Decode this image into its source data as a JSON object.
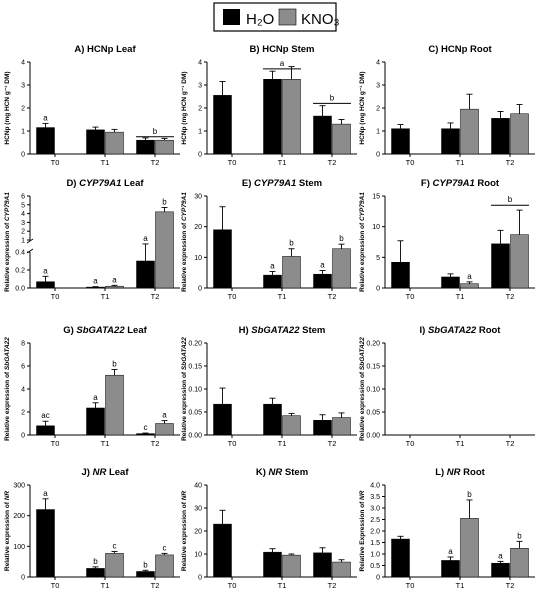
{
  "legend": {
    "items": [
      {
        "label": "H₂O",
        "color": "#000000"
      },
      {
        "label": "KNO₃",
        "color": "#8c8c8c"
      }
    ]
  },
  "colors": {
    "h2o": "#000000",
    "kno3": "#8c8c8c"
  },
  "chart_data": [
    {
      "id": "A",
      "type": "bar",
      "title_prefix": "A) ",
      "title_gene": "",
      "title_suffix": "HCNp Leaf",
      "ylabel": "HCNp  (mg HCN g⁻¹ DM)",
      "ylim": [
        0,
        4
      ],
      "yticks": [
        0,
        1,
        2,
        3,
        4
      ],
      "ytick_labels": [
        "0",
        "1",
        "2",
        "3",
        "4"
      ],
      "categories": [
        "T0",
        "T1",
        "T2"
      ],
      "series": [
        {
          "name": "H₂O",
          "values": [
            1.15,
            1.05,
            0.6
          ],
          "errors": [
            0.18,
            0.12,
            0.1
          ],
          "letters": [
            "a",
            "",
            ""
          ]
        },
        {
          "name": "KNO₃",
          "values": [
            null,
            0.95,
            0.6
          ],
          "errors": [
            null,
            0.12,
            0.08
          ],
          "letters": [
            "",
            "",
            ""
          ]
        }
      ],
      "brackets": [
        {
          "from": 2,
          "to": 2,
          "y": 0.75,
          "label": "b"
        }
      ]
    },
    {
      "id": "B",
      "type": "bar",
      "title_prefix": "B) ",
      "title_gene": "",
      "title_suffix": "HCNp Stem",
      "ylabel": "HCNp  (mg HCN g⁻¹ DM)",
      "ylim": [
        0,
        4
      ],
      "yticks": [
        0,
        1,
        2,
        3,
        4
      ],
      "ytick_labels": [
        "0",
        "1",
        "2",
        "3",
        "4"
      ],
      "categories": [
        "T0",
        "T1",
        "T2"
      ],
      "series": [
        {
          "name": "H₂O",
          "values": [
            2.55,
            3.25,
            1.65
          ],
          "errors": [
            0.6,
            0.35,
            0.45
          ],
          "letters": [
            "",
            "",
            ""
          ]
        },
        {
          "name": "KNO₃",
          "values": [
            null,
            3.25,
            1.3
          ],
          "errors": [
            null,
            0.55,
            0.2
          ],
          "letters": [
            "",
            "",
            ""
          ]
        }
      ],
      "brackets": [
        {
          "from": 1,
          "to": 1,
          "y": 3.7,
          "label": "a"
        },
        {
          "from": 2,
          "to": 2,
          "y": 2.2,
          "label": "b"
        }
      ]
    },
    {
      "id": "C",
      "type": "bar",
      "title_prefix": "C) ",
      "title_gene": "",
      "title_suffix": "HCNp Root",
      "ylabel": "HCNp  (mg HCN g⁻¹ DM)",
      "ylim": [
        0,
        4
      ],
      "yticks": [
        0,
        1,
        2,
        3,
        4
      ],
      "ytick_labels": [
        "0",
        "1",
        "2",
        "3",
        "4"
      ],
      "categories": [
        "T0",
        "T1",
        "T2"
      ],
      "series": [
        {
          "name": "H₂O",
          "values": [
            1.1,
            1.1,
            1.55
          ],
          "errors": [
            0.18,
            0.25,
            0.3
          ],
          "letters": [
            "",
            "",
            ""
          ]
        },
        {
          "name": "KNO₃",
          "values": [
            null,
            1.95,
            1.75
          ],
          "errors": [
            null,
            0.65,
            0.4
          ],
          "letters": [
            "",
            "",
            ""
          ]
        }
      ],
      "brackets": []
    },
    {
      "id": "D",
      "type": "bar",
      "broken_axis": true,
      "title_prefix": "D) ",
      "title_gene": "CYP79A1",
      "title_suffix": " Leaf",
      "ylabel_prefix": "Relative expression of ",
      "ylabel_gene": "CYP79A1",
      "ylim": [
        0,
        6
      ],
      "lower_ticks": [
        0,
        0.2,
        0.4
      ],
      "lower_tick_labels": [
        "0.0",
        "0.2",
        "0.4"
      ],
      "upper_ticks": [
        1,
        2,
        3,
        4,
        5,
        6
      ],
      "upper_tick_labels": [
        "1",
        "2",
        "3",
        "4",
        "5",
        "6"
      ],
      "categories": [
        "T0",
        "T1",
        "T2"
      ],
      "series": [
        {
          "name": "H₂O",
          "values": [
            0.07,
            0.01,
            0.3
          ],
          "errors": [
            0.06,
            0.005,
            0.25
          ],
          "letters": [
            "a",
            "a",
            "a"
          ]
        },
        {
          "name": "KNO₃",
          "values": [
            null,
            0.02,
            4.2
          ],
          "errors": [
            null,
            0.01,
            0.5
          ],
          "letters": [
            "",
            "a",
            "b"
          ]
        }
      ],
      "brackets": []
    },
    {
      "id": "E",
      "type": "bar",
      "title_prefix": "E) ",
      "title_gene": "CYP79A1",
      "title_suffix": " Stem",
      "ylabel_prefix": "Relative expression of ",
      "ylabel_gene": "CYP79A1",
      "ylim": [
        0,
        30
      ],
      "yticks": [
        0,
        10,
        20,
        30
      ],
      "ytick_labels": [
        "0",
        "10",
        "20",
        "30"
      ],
      "categories": [
        "T0",
        "T1",
        "T2"
      ],
      "series": [
        {
          "name": "H₂O",
          "values": [
            19,
            4.2,
            4.5
          ],
          "errors": [
            7.5,
            1.2,
            1.2
          ],
          "letters": [
            "",
            "a",
            "a"
          ]
        },
        {
          "name": "KNO₃",
          "values": [
            null,
            10.3,
            12.8
          ],
          "errors": [
            null,
            2.5,
            1.5
          ],
          "letters": [
            "",
            "b",
            "b"
          ]
        }
      ],
      "brackets": []
    },
    {
      "id": "F",
      "type": "bar",
      "title_prefix": "F) ",
      "title_gene": "CYP79A1",
      "title_suffix": " Root",
      "ylabel_prefix": "Relative expression of ",
      "ylabel_gene": "CYP79A1",
      "ylim": [
        0,
        15
      ],
      "yticks": [
        0,
        5,
        10,
        15
      ],
      "ytick_labels": [
        "0",
        "5",
        "10",
        "15"
      ],
      "categories": [
        "T0",
        "T1",
        "T2"
      ],
      "series": [
        {
          "name": "H₂O",
          "values": [
            4.2,
            1.8,
            7.2
          ],
          "errors": [
            3.5,
            0.5,
            2.2
          ],
          "letters": [
            "",
            "",
            ""
          ]
        },
        {
          "name": "KNO₃",
          "values": [
            null,
            0.7,
            8.7
          ],
          "errors": [
            null,
            0.3,
            4.0
          ],
          "letters": [
            "",
            "a",
            ""
          ]
        }
      ],
      "brackets": [
        {
          "from": 2,
          "to": 2,
          "y": 13.5,
          "label": "b"
        }
      ]
    },
    {
      "id": "G",
      "type": "bar",
      "title_prefix": "G) ",
      "title_gene": "SbGATA22",
      "title_suffix": " Leaf",
      "ylabel_prefix": "Relative expression of ",
      "ylabel_gene": "SbGATA22",
      "ylim": [
        0,
        8
      ],
      "yticks": [
        0,
        2,
        4,
        6,
        8
      ],
      "ytick_labels": [
        "0",
        "2",
        "4",
        "6",
        "8"
      ],
      "categories": [
        "T0",
        "T1",
        "T2"
      ],
      "series": [
        {
          "name": "H₂O",
          "values": [
            0.8,
            2.35,
            0.12
          ],
          "errors": [
            0.4,
            0.45,
            0.05
          ],
          "letters": [
            "ac",
            "a",
            "c"
          ]
        },
        {
          "name": "KNO₃",
          "values": [
            null,
            5.2,
            1.0
          ],
          "errors": [
            null,
            0.5,
            0.25
          ],
          "letters": [
            "",
            "b",
            "a"
          ]
        }
      ],
      "brackets": []
    },
    {
      "id": "H",
      "type": "bar",
      "title_prefix": "H) ",
      "title_gene": "SbGATA22",
      "title_suffix": " Stem",
      "ylabel_prefix": "Relative expression of ",
      "ylabel_gene": "SbGATA22",
      "ylim": [
        0,
        0.2
      ],
      "yticks": [
        0,
        0.05,
        0.1,
        0.15,
        0.2
      ],
      "ytick_labels": [
        "0.00",
        "0.05",
        "0.10",
        "0.15",
        "0.20"
      ],
      "categories": [
        "T0",
        "T1",
        "T2"
      ],
      "series": [
        {
          "name": "H₂O",
          "values": [
            0.067,
            0.067,
            0.032
          ],
          "errors": [
            0.035,
            0.013,
            0.012
          ],
          "letters": [
            "",
            "",
            ""
          ]
        },
        {
          "name": "KNO₃",
          "values": [
            null,
            0.042,
            0.038
          ],
          "errors": [
            null,
            0.005,
            0.01
          ],
          "letters": [
            "",
            "",
            ""
          ]
        }
      ],
      "brackets": []
    },
    {
      "id": "I",
      "type": "bar",
      "title_prefix": "I) ",
      "title_gene": "SbGATA22",
      "title_suffix": " Root",
      "ylabel_prefix": "Relative expression of ",
      "ylabel_gene": "SbGATA22",
      "ylim": [
        0,
        0.2
      ],
      "yticks": [
        0,
        0.05,
        0.1,
        0.15,
        0.2
      ],
      "ytick_labels": [
        "0.00",
        "0.05",
        "0.10",
        "0.15",
        "0.20"
      ],
      "categories": [
        "T0",
        "T1",
        "T2"
      ],
      "series": [
        {
          "name": "H₂O",
          "values": [
            null,
            null,
            null
          ],
          "errors": [
            null,
            null,
            null
          ],
          "letters": [
            "",
            "",
            ""
          ]
        },
        {
          "name": "KNO₃",
          "values": [
            null,
            null,
            null
          ],
          "errors": [
            null,
            null,
            null
          ],
          "letters": [
            "",
            "",
            ""
          ]
        }
      ],
      "brackets": []
    },
    {
      "id": "J",
      "type": "bar",
      "title_prefix": "J) ",
      "title_gene": "NR",
      "title_suffix": " Leaf",
      "ylabel_prefix": "Relative expression of ",
      "ylabel_gene": "NR",
      "ylim": [
        0,
        300
      ],
      "yticks": [
        0,
        100,
        200,
        300
      ],
      "ytick_labels": [
        "0",
        "100",
        "200",
        "300"
      ],
      "categories": [
        "T0",
        "T1",
        "T2"
      ],
      "series": [
        {
          "name": "H₂O",
          "values": [
            220,
            28,
            18
          ],
          "errors": [
            35,
            5,
            4
          ],
          "letters": [
            "a",
            "b",
            "b"
          ]
        },
        {
          "name": "KNO₃",
          "values": [
            null,
            77,
            72
          ],
          "errors": [
            null,
            6,
            5
          ],
          "letters": [
            "",
            "c",
            "c"
          ]
        }
      ],
      "brackets": []
    },
    {
      "id": "K",
      "type": "bar",
      "title_prefix": "K) ",
      "title_gene": "NR",
      "title_suffix": " Stem",
      "ylabel_prefix": "Relative expression of ",
      "ylabel_gene": "NR",
      "ylim": [
        0,
        40
      ],
      "yticks": [
        0,
        10,
        20,
        30,
        40
      ],
      "ytick_labels": [
        "0",
        "10",
        "20",
        "30",
        "40"
      ],
      "categories": [
        "T0",
        "T1",
        "T2"
      ],
      "series": [
        {
          "name": "H₂O",
          "values": [
            23,
            10.8,
            10.5
          ],
          "errors": [
            6,
            1.5,
            2.2
          ],
          "letters": [
            "",
            "",
            ""
          ]
        },
        {
          "name": "KNO₃",
          "values": [
            null,
            9.5,
            6.5
          ],
          "errors": [
            null,
            0.5,
            1.0
          ],
          "letters": [
            "",
            "",
            ""
          ]
        }
      ],
      "brackets": []
    },
    {
      "id": "L",
      "type": "bar",
      "title_prefix": "L) ",
      "title_gene": "NR",
      "title_suffix": " Root",
      "ylabel_prefix": "Relative Expression of ",
      "ylabel_gene": "NR",
      "ylim": [
        0,
        4
      ],
      "yticks": [
        0,
        0.5,
        1,
        1.5,
        2,
        2.5,
        3,
        3.5,
        4
      ],
      "ytick_labels": [
        "0",
        "0.5",
        "1.0",
        "1.5",
        "2.0",
        "2.5",
        "3.0",
        "3.5",
        "4.0"
      ],
      "categories": [
        "T0",
        "T1",
        "T2"
      ],
      "series": [
        {
          "name": "H₂O",
          "values": [
            1.65,
            0.72,
            0.6
          ],
          "errors": [
            0.12,
            0.15,
            0.08
          ],
          "letters": [
            "",
            "a",
            "a"
          ]
        },
        {
          "name": "KNO₃",
          "values": [
            null,
            2.55,
            1.25
          ],
          "errors": [
            null,
            0.8,
            0.3
          ],
          "letters": [
            "",
            "b",
            "b"
          ]
        }
      ],
      "brackets": []
    }
  ]
}
